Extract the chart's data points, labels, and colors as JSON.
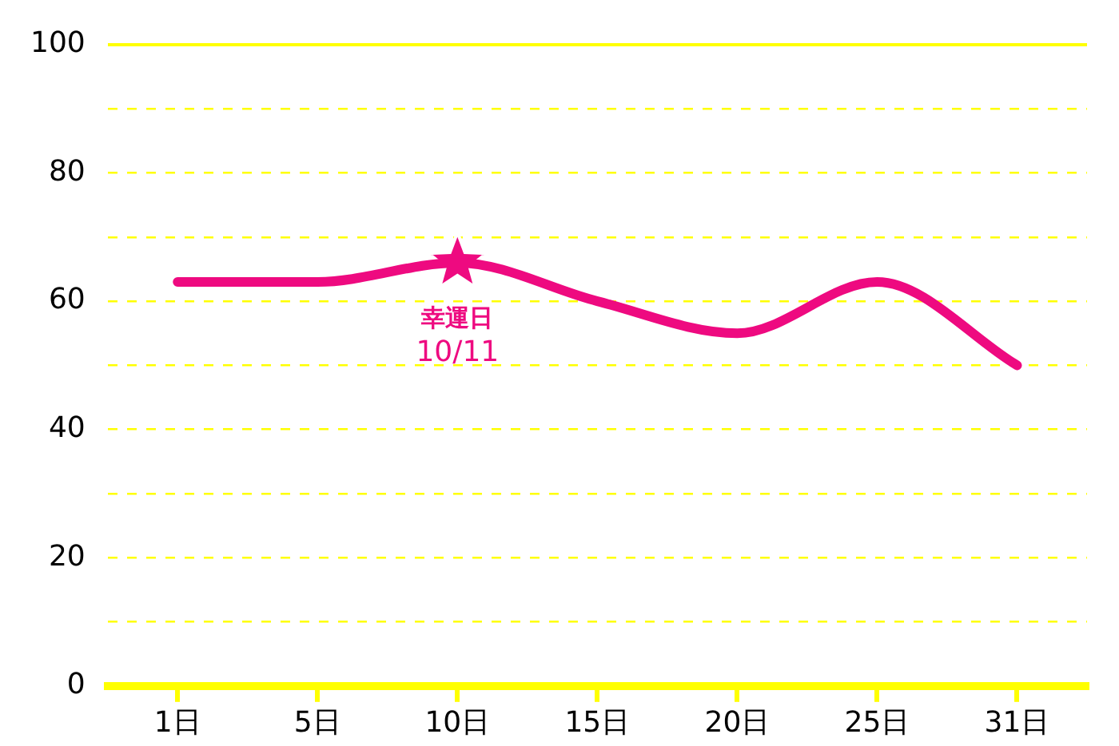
{
  "chart_data": {
    "type": "line",
    "categories": [
      "1日",
      "5日",
      "10日",
      "15日",
      "20日",
      "25日",
      "31日"
    ],
    "series": [
      {
        "color": "#ee0a80",
        "values": [
          63,
          63,
          66,
          60,
          55,
          63,
          50
        ]
      }
    ],
    "ylim": [
      0,
      100
    ],
    "yticks": [
      0,
      {
        "value": 10,
        "label": null
      },
      20,
      {
        "value": 30,
        "label": null
      },
      40,
      {
        "value": 50,
        "label": null
      },
      60,
      {
        "value": 70,
        "label": null
      },
      80,
      {
        "value": 90,
        "label": null
      },
      100
    ],
    "grid": "y",
    "marker": "none",
    "line_style": "solid",
    "legend": false,
    "annotations": [
      {
        "text": "幸運日\n10/11",
        "x": "10日",
        "y": 66
      }
    ]
  }
}
